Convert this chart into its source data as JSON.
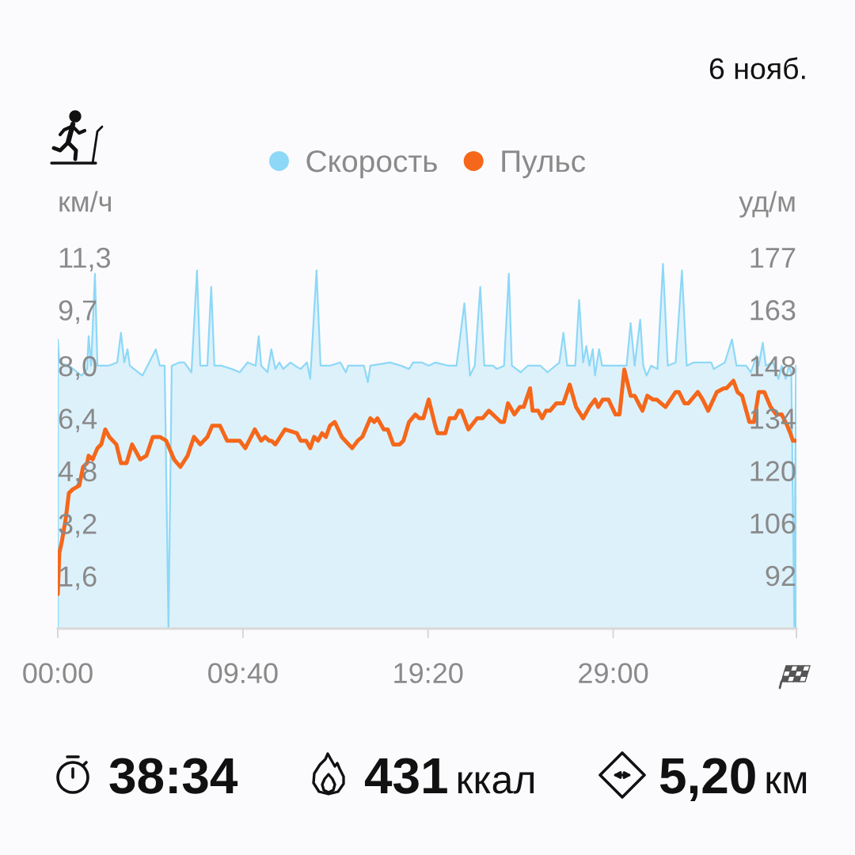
{
  "chart_data": {
    "type": "area",
    "ylabel": "км/ч",
    "y2label": "уд/м",
    "annotations": [
      "6 нояб.",
      "38:34",
      "431 ккал",
      "5,20 км"
    ],
    "xlim": [
      0,
      38.567
    ],
    "xticks": [
      {
        "value": 0,
        "label": "00:00"
      },
      {
        "value": 9.667,
        "label": "09:40"
      },
      {
        "value": 19.333,
        "label": "19:20"
      },
      {
        "value": 29,
        "label": "29:00"
      },
      {
        "value": 38.567,
        "label": null
      }
    ],
    "ylim": [
      0,
      11.3
    ],
    "yticks": [
      {
        "value": 1.6,
        "label": "1,6"
      },
      {
        "value": 3.2,
        "label": "3,2"
      },
      {
        "value": 4.8,
        "label": "4,8"
      },
      {
        "value": 6.4,
        "label": "6,4"
      },
      {
        "value": 8.0,
        "label": "8,0"
      },
      {
        "value": 9.7,
        "label": "9,7"
      },
      {
        "value": 11.3,
        "label": "11,3"
      }
    ],
    "y2lim": [
      77.8,
      177
    ],
    "y2ticks": [
      92,
      106,
      120,
      134,
      148,
      163,
      177
    ],
    "legend": "top",
    "series": [
      {
        "name": "Скорость",
        "color": "#8dd8f7",
        "x": [
          0,
          0.08,
          0.58,
          1.24,
          1.53,
          1.61,
          1.74,
          1.94,
          2.07,
          2.64,
          3.1,
          3.3,
          3.47,
          3.64,
          3.76,
          4.42,
          5.12,
          5.33,
          5.58,
          5.78,
          5.95,
          6.36,
          6.61,
          6.98,
          7.27,
          7.44,
          7.81,
          8.01,
          8.18,
          8.55,
          9.09,
          9.5,
          9.91,
          10.33,
          10.49,
          10.62,
          10.95,
          11.15,
          11.36,
          11.57,
          11.77,
          12.15,
          12.39,
          12.68,
          13.01,
          13.18,
          13.51,
          13.72,
          14.21,
          14.75,
          15.04,
          15.16,
          15.99,
          16.19,
          16.32,
          17.35,
          17.93,
          18.34,
          18.55,
          19.0,
          19.37,
          19.71,
          20.41,
          20.82,
          21.23,
          21.52,
          21.77,
          22.06,
          22.27,
          22.72,
          22.93,
          23.3,
          23.55,
          23.71,
          24.17,
          24.54,
          25.2,
          25.57,
          26.19,
          26.4,
          26.6,
          27.02,
          27.22,
          27.43,
          27.6,
          27.76,
          27.93,
          28.05,
          28.26,
          28.42,
          28.79,
          29.33,
          29.7,
          29.91,
          30.12,
          30.41,
          30.57,
          30.74,
          30.98,
          31.31,
          31.6,
          31.85,
          32.26,
          32.59,
          32.84,
          33.21,
          34.12,
          34.25,
          34.83,
          35.2,
          35.44,
          35.94,
          36.19,
          36.48,
          36.6,
          36.81,
          36.97,
          37.35,
          37.63,
          37.8,
          38.01,
          38.17,
          38.3,
          38.46,
          38.54
        ],
        "values": [
          8.8,
          8.1,
          8.0,
          7.7,
          7.9,
          8.9,
          8.0,
          10.8,
          8.0,
          8.0,
          8.1,
          9.0,
          8.1,
          8.5,
          8.0,
          7.7,
          8.5,
          8.0,
          8.0,
          0,
          8.0,
          8.1,
          8.1,
          7.8,
          10.9,
          8.0,
          8.0,
          10.4,
          8.0,
          8.0,
          7.9,
          7.8,
          8.1,
          8.0,
          8.9,
          8.0,
          7.8,
          8.5,
          7.9,
          8.1,
          7.9,
          8.1,
          8.0,
          7.9,
          8.1,
          7.6,
          10.9,
          8.0,
          8.0,
          8.1,
          7.8,
          8.0,
          8.0,
          7.5,
          8.0,
          8.1,
          8.0,
          7.9,
          8.1,
          8.1,
          8.0,
          8.1,
          8.0,
          8.0,
          9.9,
          7.7,
          8.0,
          10.4,
          8.0,
          8.0,
          7.9,
          8.0,
          10.8,
          8.0,
          7.8,
          8.0,
          8.0,
          7.8,
          8.1,
          9.0,
          8.0,
          8.0,
          10.0,
          8.1,
          8.6,
          8.0,
          8.5,
          7.7,
          8.5,
          8.0,
          8.0,
          8.0,
          8.0,
          9.3,
          8.0,
          9.4,
          8.0,
          7.7,
          8.0,
          7.9,
          11.1,
          8.0,
          8.1,
          10.9,
          8.0,
          8.1,
          8.1,
          7.9,
          8.1,
          8.8,
          8.0,
          8.0,
          7.8,
          8.3,
          8.0,
          8.7,
          8.0,
          8.1,
          7.6,
          8.0,
          7.6,
          8.0,
          7.8,
          0,
          8.0
        ]
      },
      {
        "name": "Пульс",
        "type": "line",
        "axis": "y2",
        "color": "#f5671a",
        "x": [
          0,
          0.08,
          0.21,
          0.41,
          0.58,
          0.78,
          1.12,
          1.32,
          1.53,
          1.61,
          1.82,
          2.07,
          2.27,
          2.48,
          2.69,
          3.06,
          3.3,
          3.59,
          3.88,
          4.3,
          4.63,
          4.96,
          5.33,
          5.66,
          6.07,
          6.4,
          6.78,
          7.11,
          7.44,
          7.81,
          8.06,
          8.47,
          8.84,
          9.17,
          9.5,
          9.79,
          10.29,
          10.62,
          10.82,
          11.03,
          11.15,
          11.36,
          11.86,
          12.48,
          12.68,
          12.97,
          13.18,
          13.38,
          13.59,
          13.8,
          14.0,
          14.21,
          14.46,
          14.83,
          15.37,
          15.66,
          15.9,
          16.32,
          16.52,
          16.69,
          17.02,
          17.23,
          17.52,
          17.85,
          18.05,
          18.34,
          18.67,
          18.88,
          19.09,
          19.37,
          19.71,
          19.83,
          20.24,
          20.45,
          20.74,
          20.94,
          21.07,
          21.44,
          21.9,
          22.18,
          22.51,
          23.13,
          23.3,
          23.51,
          23.84,
          24.13,
          24.33,
          24.46,
          24.66,
          24.79,
          25.08,
          25.29,
          25.49,
          25.7,
          26.03,
          26.4,
          26.73,
          27.06,
          27.43,
          27.76,
          28.05,
          28.22,
          28.46,
          28.75,
          29.12,
          29.33,
          29.58,
          29.91,
          30.12,
          30.53,
          30.78,
          31.07,
          31.27,
          31.73,
          32.26,
          32.43,
          32.72,
          32.93,
          33.42,
          33.67,
          33.96,
          34.41,
          34.78,
          34.91,
          35.28,
          35.49,
          35.73,
          36.11,
          36.35,
          36.6,
          36.89,
          37.22,
          37.51,
          37.8,
          38.09,
          38.25,
          38.38,
          38.54
        ],
        "values": [
          87,
          98,
          101,
          107,
          114,
          115,
          116,
          121,
          122,
          124,
          123,
          126,
          127,
          131,
          129,
          127,
          122,
          122,
          127,
          123,
          124,
          129,
          129,
          128,
          123,
          121,
          124,
          129,
          127,
          129,
          132,
          132,
          128,
          128,
          128,
          126,
          131,
          128,
          129,
          128,
          128,
          127,
          131,
          130,
          128,
          128,
          126,
          129,
          128,
          130,
          129,
          132,
          133,
          129,
          126,
          128,
          129,
          134,
          133,
          134,
          131,
          131,
          127,
          127,
          128,
          133,
          135,
          134,
          134,
          139,
          132,
          130,
          130,
          134,
          134,
          136,
          136,
          131,
          134,
          134,
          136,
          133,
          133,
          138,
          135,
          137,
          137,
          139,
          142,
          136,
          136,
          134,
          136,
          136,
          138,
          138,
          143,
          137,
          134,
          137,
          139,
          137,
          139,
          139,
          135,
          135,
          147,
          140,
          140,
          136,
          140,
          139,
          139,
          137,
          141,
          141,
          138,
          138,
          141,
          139,
          136,
          141,
          142,
          142,
          144,
          141,
          140,
          133,
          133,
          141,
          141,
          137,
          135,
          135,
          132,
          130,
          128,
          128
        ]
      }
    ]
  }
}
